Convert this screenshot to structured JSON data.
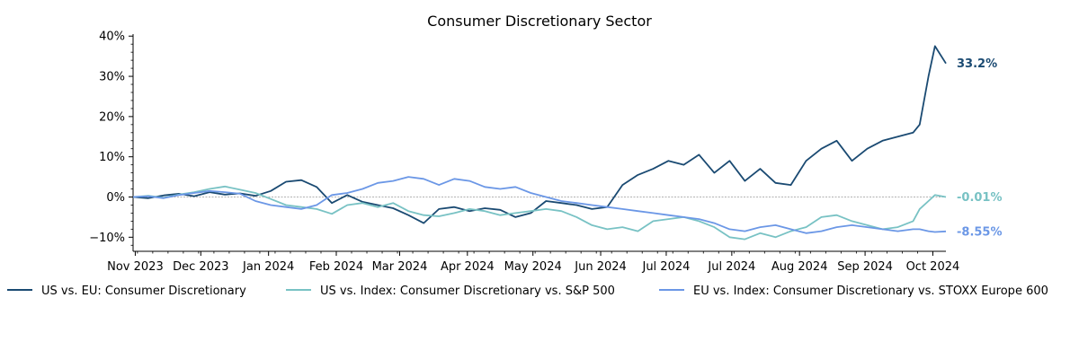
{
  "chart_data": {
    "type": "line",
    "title": "Consumer Discretionary Sector",
    "xlabel": "",
    "ylabel": "",
    "ylim": [
      -13.5,
      40.5
    ],
    "yticks": [
      -10,
      0,
      10,
      20,
      30,
      40
    ],
    "ytick_labels": [
      "−10%",
      "0%",
      "10%",
      "20%",
      "30%",
      "40%"
    ],
    "x_start": "2023-10-31",
    "x_end": "2024-11-06",
    "xticks": [
      "2023-11-01",
      "2023-12-01",
      "2024-01-01",
      "2024-02-01",
      "2024-03-01",
      "2024-04-01",
      "2024-05-01",
      "2024-06-01",
      "2024-07-01",
      "2024-07-31",
      "2024-08-31",
      "2024-09-30",
      "2024-10-31"
    ],
    "xtick_labels": [
      "Nov 2023",
      "Dec 2023",
      "Jan 2024",
      "Feb 2024",
      "Mar 2024",
      "Apr 2024",
      "May 2024",
      "Jun 2024",
      "Jul 2024",
      "Jul 2024",
      "Aug 2024",
      "Sep 2024",
      "Oct 2024"
    ],
    "zero_line": true,
    "grid": false,
    "legend_position": "below",
    "series": [
      {
        "name": "US vs. EU: Consumer Discretionary",
        "color": "#1a4a72",
        "end_label": "33.2%",
        "x": [
          "2023-10-31",
          "2023-11-07",
          "2023-11-14",
          "2023-11-21",
          "2023-11-28",
          "2023-12-05",
          "2023-12-12",
          "2023-12-19",
          "2023-12-26",
          "2024-01-02",
          "2024-01-09",
          "2024-01-16",
          "2024-01-23",
          "2024-01-30",
          "2024-02-06",
          "2024-02-13",
          "2024-02-20",
          "2024-02-27",
          "2024-03-05",
          "2024-03-12",
          "2024-03-19",
          "2024-03-26",
          "2024-04-02",
          "2024-04-09",
          "2024-04-16",
          "2024-04-23",
          "2024-04-30",
          "2024-05-07",
          "2024-05-14",
          "2024-05-21",
          "2024-05-28",
          "2024-06-04",
          "2024-06-11",
          "2024-06-18",
          "2024-06-25",
          "2024-07-02",
          "2024-07-09",
          "2024-07-16",
          "2024-07-23",
          "2024-07-30",
          "2024-08-06",
          "2024-08-13",
          "2024-08-20",
          "2024-08-27",
          "2024-09-03",
          "2024-09-10",
          "2024-09-17",
          "2024-09-24",
          "2024-10-01",
          "2024-10-08",
          "2024-10-15",
          "2024-10-22",
          "2024-10-25",
          "2024-10-29",
          "2024-11-01",
          "2024-11-06"
        ],
        "values": [
          0.0,
          -0.3,
          0.4,
          0.8,
          0.2,
          1.2,
          0.6,
          0.9,
          0.3,
          1.5,
          3.8,
          4.2,
          2.5,
          -1.5,
          0.5,
          -1.2,
          -2.0,
          -2.8,
          -4.5,
          -6.5,
          -3.0,
          -2.5,
          -3.5,
          -2.8,
          -3.2,
          -5.0,
          -4.0,
          -1.0,
          -1.5,
          -2.0,
          -3.0,
          -2.5,
          3.0,
          5.5,
          7.0,
          9.0,
          8.0,
          10.5,
          6.0,
          9.0,
          4.0,
          7.0,
          3.5,
          3.0,
          9.0,
          12.0,
          14.0,
          9.0,
          12.0,
          14.0,
          15.0,
          16.0,
          18.0,
          30.0,
          37.5,
          33.2
        ]
      },
      {
        "name": "US vs. Index: Consumer Discretionary vs. S&P 500",
        "color": "#78c2c4",
        "end_label": "-0.01%",
        "x": [
          "2023-10-31",
          "2023-11-07",
          "2023-11-14",
          "2023-11-21",
          "2023-11-28",
          "2023-12-05",
          "2023-12-12",
          "2023-12-19",
          "2023-12-26",
          "2024-01-02",
          "2024-01-09",
          "2024-01-16",
          "2024-01-23",
          "2024-01-30",
          "2024-02-06",
          "2024-02-13",
          "2024-02-20",
          "2024-02-27",
          "2024-03-05",
          "2024-03-12",
          "2024-03-19",
          "2024-03-26",
          "2024-04-02",
          "2024-04-09",
          "2024-04-16",
          "2024-04-23",
          "2024-04-30",
          "2024-05-07",
          "2024-05-14",
          "2024-05-21",
          "2024-05-28",
          "2024-06-04",
          "2024-06-11",
          "2024-06-18",
          "2024-06-25",
          "2024-07-02",
          "2024-07-09",
          "2024-07-16",
          "2024-07-23",
          "2024-07-30",
          "2024-08-06",
          "2024-08-13",
          "2024-08-20",
          "2024-08-27",
          "2024-09-03",
          "2024-09-10",
          "2024-09-17",
          "2024-09-24",
          "2024-10-01",
          "2024-10-08",
          "2024-10-15",
          "2024-10-22",
          "2024-10-25",
          "2024-10-29",
          "2024-11-01",
          "2024-11-06"
        ],
        "values": [
          0.0,
          0.3,
          -0.2,
          0.6,
          1.2,
          2.0,
          2.6,
          1.8,
          1.0,
          -0.5,
          -2.0,
          -2.5,
          -3.0,
          -4.2,
          -2.0,
          -1.5,
          -2.5,
          -1.5,
          -3.5,
          -4.5,
          -4.8,
          -4.0,
          -3.0,
          -3.5,
          -4.5,
          -4.0,
          -3.5,
          -3.0,
          -3.5,
          -5.0,
          -7.0,
          -8.0,
          -7.5,
          -8.5,
          -6.0,
          -5.5,
          -5.0,
          -6.0,
          -7.5,
          -10.0,
          -10.5,
          -9.0,
          -10.0,
          -8.5,
          -7.5,
          -5.0,
          -4.5,
          -6.0,
          -7.0,
          -8.0,
          -7.5,
          -6.0,
          -3.0,
          -1.0,
          0.5,
          -0.01
        ]
      },
      {
        "name": "EU vs. Index: Consumer Discretionary vs. STOXX Europe 600",
        "color": "#6b97e6",
        "end_label": "-8.55%",
        "x": [
          "2023-10-31",
          "2023-11-07",
          "2023-11-14",
          "2023-11-21",
          "2023-11-28",
          "2023-12-05",
          "2023-12-12",
          "2023-12-19",
          "2023-12-26",
          "2024-01-02",
          "2024-01-09",
          "2024-01-16",
          "2024-01-23",
          "2024-01-30",
          "2024-02-06",
          "2024-02-13",
          "2024-02-20",
          "2024-02-27",
          "2024-03-05",
          "2024-03-12",
          "2024-03-19",
          "2024-03-26",
          "2024-04-02",
          "2024-04-09",
          "2024-04-16",
          "2024-04-23",
          "2024-04-30",
          "2024-05-07",
          "2024-05-14",
          "2024-05-21",
          "2024-05-28",
          "2024-06-04",
          "2024-06-11",
          "2024-06-18",
          "2024-06-25",
          "2024-07-02",
          "2024-07-09",
          "2024-07-16",
          "2024-07-23",
          "2024-07-30",
          "2024-08-06",
          "2024-08-13",
          "2024-08-20",
          "2024-08-27",
          "2024-09-03",
          "2024-09-10",
          "2024-09-17",
          "2024-09-24",
          "2024-10-01",
          "2024-10-08",
          "2024-10-15",
          "2024-10-22",
          "2024-10-25",
          "2024-10-29",
          "2024-11-01",
          "2024-11-06"
        ],
        "values": [
          0.0,
          0.2,
          -0.3,
          0.5,
          1.0,
          1.5,
          1.2,
          0.8,
          -1.0,
          -2.0,
          -2.5,
          -3.0,
          -2.0,
          0.5,
          1.0,
          2.0,
          3.5,
          4.0,
          5.0,
          4.5,
          3.0,
          4.5,
          4.0,
          2.5,
          2.0,
          2.5,
          1.0,
          0.0,
          -1.0,
          -1.5,
          -2.0,
          -2.5,
          -3.0,
          -3.5,
          -4.0,
          -4.5,
          -5.0,
          -5.5,
          -6.5,
          -8.0,
          -8.5,
          -7.5,
          -7.0,
          -8.0,
          -9.0,
          -8.5,
          -7.5,
          -7.0,
          -7.5,
          -8.0,
          -8.5,
          -8.0,
          -8.0,
          -8.5,
          -8.7,
          -8.55
        ]
      }
    ]
  }
}
